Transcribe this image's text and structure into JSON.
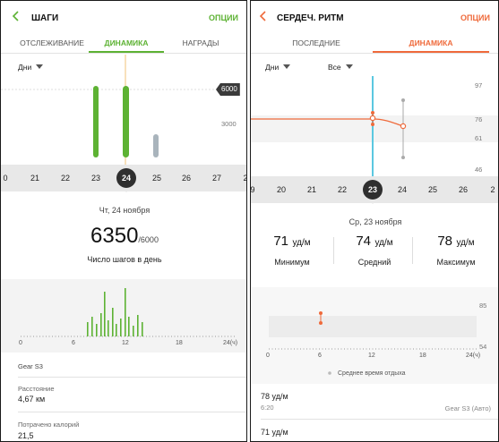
{
  "colors": {
    "steps_accent": "#5db233",
    "heart_accent": "#ef6a3b",
    "cursor_line": "#5bc8e0",
    "grey_bar": "#a9b4bc"
  },
  "left": {
    "back_icon": "chevron-left-icon",
    "title": "ШАГИ",
    "options": "ОПЦИИ",
    "tabs": [
      "ОТСЛЕЖИВАНИЕ",
      "ДИНАМИКА",
      "НАГРАДЫ"
    ],
    "active_tab": 1,
    "period": "Дни",
    "goal_badge": "6000",
    "axis_label": "3000",
    "days": [
      "0",
      "21",
      "22",
      "23",
      "24",
      "25",
      "26",
      "27",
      "2"
    ],
    "selected_day": "24",
    "date": "Чт, 24 ноября",
    "steps_value": "6350",
    "steps_goal": "/6000",
    "steps_caption": "Число шагов в день",
    "hour_ticks": [
      "0",
      "6",
      "12",
      "18",
      "24(ч)"
    ],
    "device": "Gear S3",
    "distance_label": "Расстояние",
    "distance_value": "4,67 км",
    "calories_label": "Потрачено калорий",
    "calories_value": "21,5"
  },
  "right": {
    "back_icon": "chevron-left-icon",
    "title": "СЕРДЕЧ. РИТМ",
    "options": "ОПЦИИ",
    "tabs": [
      "ПОСЛЕДНИЕ",
      "ДИНАМИКА"
    ],
    "active_tab": 1,
    "period": "Дни",
    "filter": "Все",
    "axis_labels": [
      "97",
      "76",
      "61",
      "46"
    ],
    "days": [
      "9",
      "20",
      "21",
      "22",
      "23",
      "24",
      "25",
      "26",
      "2"
    ],
    "selected_day": "23",
    "date": "Ср, 23 ноября",
    "stats": [
      {
        "value": "71",
        "unit": "уд/м",
        "label": "Минимум"
      },
      {
        "value": "74",
        "unit": "уд/м",
        "label": "Средний"
      },
      {
        "value": "78",
        "unit": "уд/м",
        "label": "Максимум"
      }
    ],
    "chart_axis": [
      "85",
      "54"
    ],
    "hour_ticks": [
      "0",
      "6",
      "12",
      "18",
      "24(ч)"
    ],
    "legend": "Среднее время отдыха",
    "entries": [
      {
        "value": "78 уд/м",
        "time": "6:20",
        "source": "Gear S3 (Авто)"
      },
      {
        "value": "71 уд/м",
        "time": "",
        "source": ""
      }
    ]
  }
}
